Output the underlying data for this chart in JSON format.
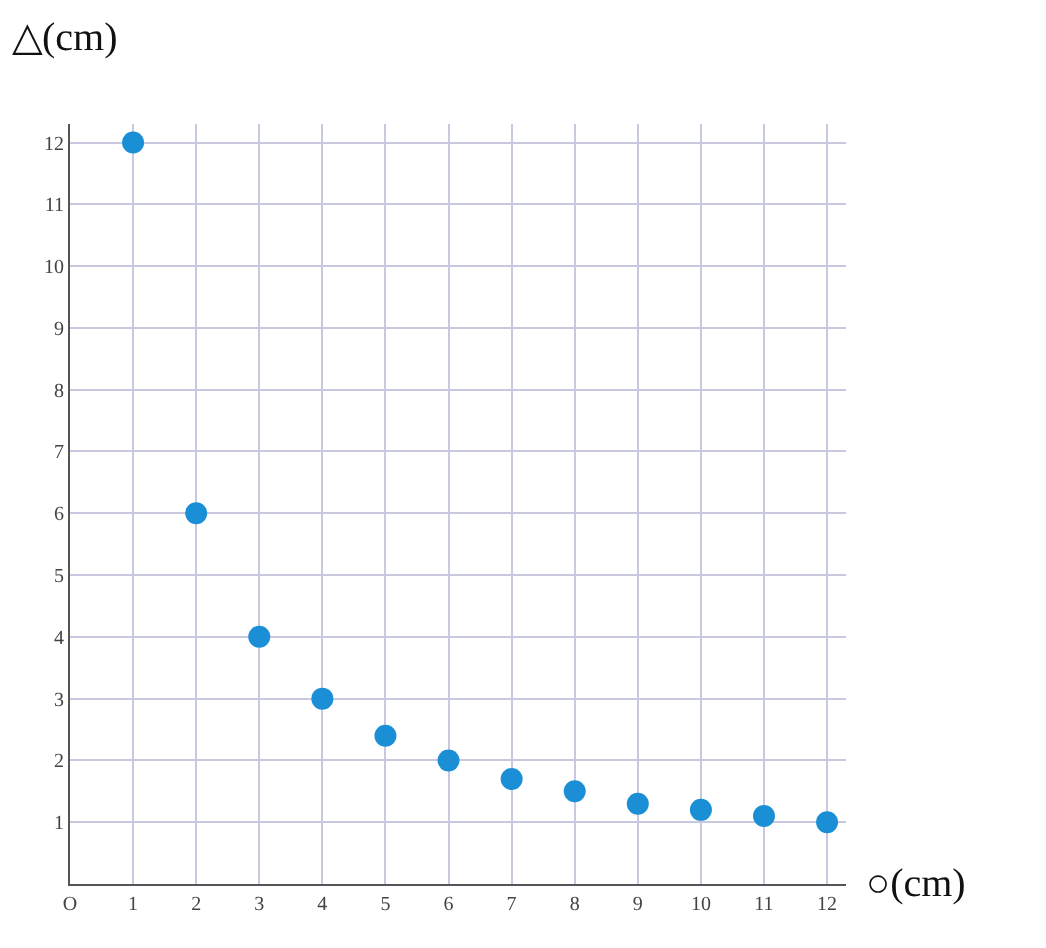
{
  "chart_data": {
    "type": "scatter",
    "xlabel": "○(cm)",
    "ylabel": "△(cm)",
    "x": [
      1,
      2,
      3,
      4,
      5,
      6,
      7,
      8,
      9,
      10,
      11,
      12
    ],
    "series": [
      {
        "color": "#1a8fd6",
        "values": [
          12,
          6,
          4,
          3,
          2.4,
          2,
          1.7,
          1.5,
          1.3,
          1.2,
          1.1,
          1
        ]
      }
    ],
    "xlim": [
      0,
      12.3
    ],
    "ylim": [
      0,
      12.3
    ],
    "xticks": [
      {
        "value": 0,
        "label": "O"
      },
      1,
      2,
      3,
      4,
      5,
      6,
      7,
      8,
      9,
      10,
      11,
      12
    ],
    "yticks": [
      1,
      2,
      3,
      4,
      5,
      6,
      7,
      8,
      9,
      10,
      11,
      12
    ],
    "grid": true,
    "marker": "circle"
  }
}
